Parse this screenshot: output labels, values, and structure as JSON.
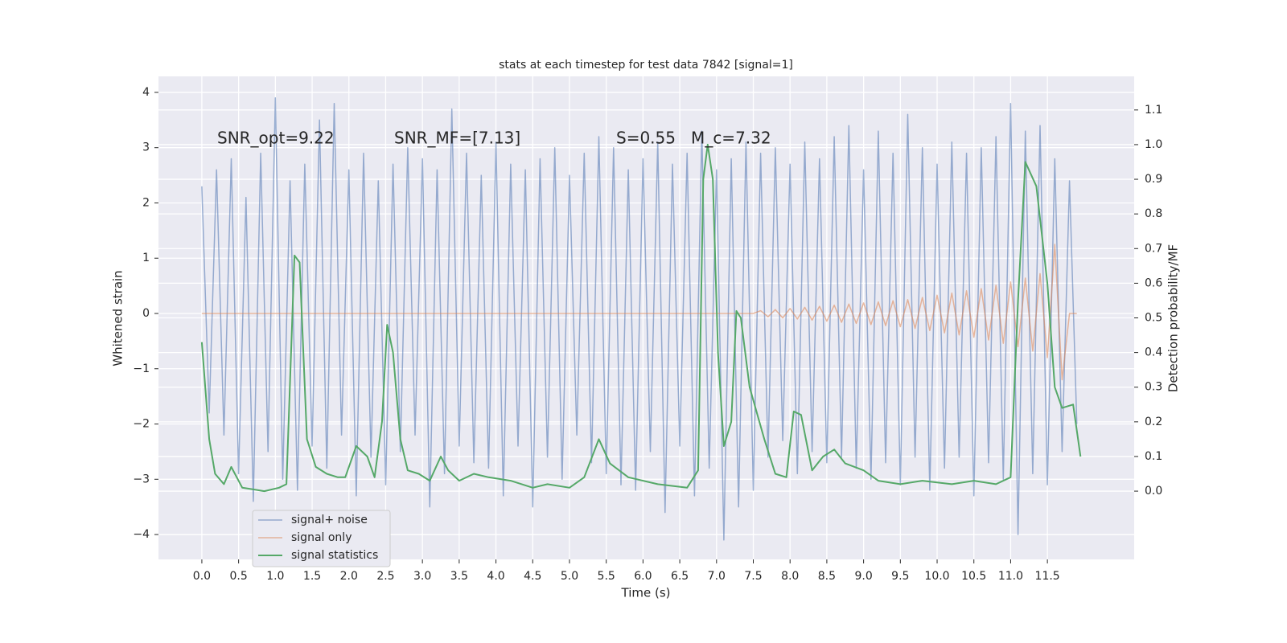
{
  "chart_data": {
    "type": "line",
    "title": "stats at each timestep for test data 7842 [signal=1]",
    "xlabel": "Time (s)",
    "ylabel": "Whitened strain",
    "y2label": "Detection probability/MF",
    "annotations": [
      "SNR_opt=9.22",
      "SNR_MF=[7.13]",
      "S=0.55   M_c=7.32"
    ],
    "grid": true,
    "legend": "lower left",
    "xlim": [
      -0.59,
      12.68
    ],
    "ylim": [
      -4.45,
      4.29
    ],
    "y2lim": [
      -0.197,
      1.197
    ],
    "xticks": [
      {
        "value": 0,
        "label": "0.0"
      },
      {
        "value": 0.5,
        "label": "0.5"
      },
      {
        "value": 1,
        "label": "1.0"
      },
      {
        "value": 1.5,
        "label": "1.5"
      },
      {
        "value": 2,
        "label": "2.0"
      },
      {
        "value": 2.5,
        "label": "2.5"
      },
      {
        "value": 3,
        "label": "3.0"
      },
      {
        "value": 3.5,
        "label": "3.5"
      },
      {
        "value": 4,
        "label": "4.0"
      },
      {
        "value": 4.5,
        "label": "4.5"
      },
      {
        "value": 5,
        "label": "5.0"
      },
      {
        "value": 5.5,
        "label": "5.5"
      },
      {
        "value": 6,
        "label": "6.0"
      },
      {
        "value": 6.5,
        "label": "6.5"
      },
      {
        "value": 7,
        "label": "7.0"
      },
      {
        "value": 7.5,
        "label": "7.5"
      },
      {
        "value": 8,
        "label": "8.0"
      },
      {
        "value": 8.5,
        "label": "8.5"
      },
      {
        "value": 9,
        "label": "9.0"
      },
      {
        "value": 9.5,
        "label": "9.5"
      },
      {
        "value": 10,
        "label": "10.0"
      },
      {
        "value": 10.5,
        "label": "10.5"
      },
      {
        "value": 11,
        "label": "11.0"
      },
      {
        "value": 11.5,
        "label": "11.5"
      }
    ],
    "yticks": [
      {
        "value": -4,
        "label": "−4"
      },
      {
        "value": -3,
        "label": "−3"
      },
      {
        "value": -2,
        "label": "−2"
      },
      {
        "value": -1,
        "label": "−1"
      },
      0,
      1,
      2,
      3,
      4
    ],
    "y2ticks": [
      {
        "value": 0,
        "label": "0.0"
      },
      {
        "value": 0.1,
        "label": "0.1"
      },
      {
        "value": 0.2,
        "label": "0.2"
      },
      {
        "value": 0.3,
        "label": "0.3"
      },
      {
        "value": 0.4,
        "label": "0.4"
      },
      {
        "value": 0.5,
        "label": "0.5"
      },
      {
        "value": 0.6,
        "label": "0.6"
      },
      {
        "value": 0.7,
        "label": "0.7"
      },
      {
        "value": 0.8,
        "label": "0.8"
      },
      {
        "value": 0.9,
        "label": "0.9"
      },
      {
        "value": 1,
        "label": "1.0"
      },
      {
        "value": 1.1,
        "label": "1.1"
      }
    ],
    "x": [
      0.0,
      0.1,
      0.2,
      0.3,
      0.4,
      0.5,
      0.6,
      0.7,
      0.8,
      0.9,
      1.0,
      1.1,
      1.2,
      1.3,
      1.4,
      1.5,
      1.6,
      1.7,
      1.8,
      1.9,
      2.0,
      2.1,
      2.2,
      2.3,
      2.4,
      2.5,
      2.6,
      2.7,
      2.8,
      2.9,
      3.0,
      3.1,
      3.2,
      3.3,
      3.4,
      3.5,
      3.6,
      3.7,
      3.8,
      3.9,
      4.0,
      4.1,
      4.2,
      4.3,
      4.4,
      4.5,
      4.6,
      4.7,
      4.8,
      4.9,
      5.0,
      5.1,
      5.2,
      5.3,
      5.4,
      5.5,
      5.6,
      5.7,
      5.8,
      5.9,
      6.0,
      6.1,
      6.2,
      6.3,
      6.4,
      6.5,
      6.6,
      6.7,
      6.8,
      6.9,
      7.0,
      7.1,
      7.2,
      7.3,
      7.4,
      7.5,
      7.6,
      7.7,
      7.8,
      7.9,
      8.0,
      8.1,
      8.2,
      8.3,
      8.4,
      8.5,
      8.6,
      8.7,
      8.8,
      8.9,
      9.0,
      9.1,
      9.2,
      9.3,
      9.4,
      9.5,
      9.6,
      9.7,
      9.8,
      9.9,
      10.0,
      10.1,
      10.2,
      10.3,
      10.4,
      10.5,
      10.6,
      10.7,
      10.8,
      10.9,
      11.0,
      11.1,
      11.2,
      11.3,
      11.4,
      11.5,
      11.6,
      11.7,
      11.8,
      11.9
    ],
    "series": [
      {
        "name": "signal+ noise",
        "color": "#4c72b0",
        "values": [
          2.3,
          -1.8,
          2.6,
          -2.2,
          2.8,
          -2.9,
          2.1,
          -3.4,
          2.9,
          -2.5,
          3.9,
          -3.0,
          2.4,
          -3.2,
          2.7,
          -2.4,
          3.5,
          -2.8,
          3.8,
          -2.2,
          2.6,
          -3.3,
          2.9,
          -2.6,
          2.4,
          -3.1,
          2.7,
          -2.5,
          3.0,
          -2.2,
          2.8,
          -3.5,
          2.6,
          -2.9,
          3.7,
          -2.4,
          2.9,
          -2.7,
          2.5,
          -2.8,
          3.1,
          -3.3,
          2.7,
          -2.4,
          2.6,
          -3.5,
          2.8,
          -2.6,
          3.0,
          -3.0,
          2.5,
          -2.2,
          2.9,
          -2.7,
          3.2,
          -2.9,
          3.0,
          -3.1,
          2.6,
          -3.2,
          2.8,
          -2.5,
          3.1,
          -3.6,
          2.7,
          -2.4,
          2.9,
          -3.3,
          3.3,
          -2.8,
          2.6,
          -4.1,
          2.8,
          -3.5,
          3.1,
          -3.2,
          2.9,
          -2.6,
          3.0,
          -2.3,
          2.7,
          -2.9,
          3.1,
          -2.5,
          2.8,
          -2.7,
          3.2,
          -2.6,
          3.4,
          -2.8,
          2.6,
          -3.0,
          3.3,
          -2.7,
          2.9,
          -3.1,
          3.6,
          -2.6,
          3.0,
          -3.2,
          2.7,
          -2.8,
          3.1,
          -2.6,
          2.9,
          -3.3,
          3.0,
          -2.7,
          3.2,
          -3.0,
          3.8,
          -4.0,
          3.3,
          -2.9,
          3.4,
          -3.1,
          2.8,
          -2.5,
          2.4,
          -2.0
        ]
      },
      {
        "name": "signal only",
        "color": "#dd8452",
        "values": [
          0,
          0,
          0,
          0,
          0,
          0,
          0,
          0,
          0,
          0,
          0,
          0,
          0,
          0,
          0,
          0,
          0,
          0,
          0,
          0,
          0,
          0,
          0,
          0,
          0,
          0,
          0,
          0,
          0,
          0,
          0,
          0,
          0,
          0,
          0,
          0,
          0,
          0,
          0,
          0,
          0,
          0,
          0,
          0,
          0,
          0,
          0,
          0,
          0,
          0,
          0,
          0,
          0,
          0,
          0,
          0,
          0,
          0,
          0,
          0,
          0,
          0,
          0,
          0,
          0,
          0,
          0,
          0,
          0,
          0,
          0,
          0,
          0,
          0,
          0,
          0,
          0.05,
          -0.06,
          0.07,
          -0.08,
          0.09,
          -0.1,
          0.11,
          -0.12,
          0.13,
          -0.14,
          0.15,
          -0.16,
          0.17,
          -0.18,
          0.19,
          -0.2,
          0.21,
          -0.22,
          0.23,
          -0.24,
          0.25,
          -0.27,
          0.29,
          -0.31,
          0.33,
          -0.35,
          0.37,
          -0.39,
          0.41,
          -0.43,
          0.45,
          -0.48,
          0.51,
          -0.54,
          0.57,
          -0.6,
          0.64,
          -0.68,
          0.72,
          -0.8,
          1.25,
          -1.2,
          0,
          0
        ]
      },
      {
        "name": "signal statistics",
        "color": "#55a868",
        "axis": "y2",
        "x": [
          0,
          0.1,
          0.18,
          0.3,
          0.4,
          0.55,
          0.7,
          0.85,
          1.05,
          1.15,
          1.26,
          1.33,
          1.43,
          1.55,
          1.7,
          1.85,
          1.95,
          2.1,
          2.25,
          2.35,
          2.45,
          2.52,
          2.6,
          2.7,
          2.8,
          2.95,
          3.1,
          3.25,
          3.35,
          3.5,
          3.7,
          3.9,
          4.2,
          4.5,
          4.7,
          5.0,
          5.2,
          5.4,
          5.55,
          5.8,
          6.2,
          6.6,
          6.75,
          6.82,
          6.88,
          6.95,
          7.02,
          7.1,
          7.2,
          7.27,
          7.33,
          7.45,
          7.65,
          7.8,
          7.95,
          8.05,
          8.15,
          8.3,
          8.45,
          8.6,
          8.75,
          9.0,
          9.2,
          9.5,
          9.8,
          10.2,
          10.5,
          10.8,
          11.0,
          11.1,
          11.2,
          11.35,
          11.5,
          11.6,
          11.7,
          11.85,
          11.95
        ],
        "values": [
          0.43,
          0.15,
          0.05,
          0.02,
          0.07,
          0.01,
          0.005,
          0.0,
          0.01,
          0.02,
          0.68,
          0.66,
          0.15,
          0.07,
          0.05,
          0.04,
          0.04,
          0.13,
          0.1,
          0.04,
          0.2,
          0.48,
          0.4,
          0.15,
          0.06,
          0.05,
          0.03,
          0.1,
          0.06,
          0.03,
          0.05,
          0.04,
          0.03,
          0.01,
          0.02,
          0.01,
          0.04,
          0.15,
          0.08,
          0.04,
          0.02,
          0.01,
          0.06,
          0.9,
          1.0,
          0.9,
          0.4,
          0.13,
          0.2,
          0.52,
          0.5,
          0.3,
          0.15,
          0.05,
          0.04,
          0.23,
          0.22,
          0.06,
          0.1,
          0.12,
          0.08,
          0.06,
          0.03,
          0.02,
          0.03,
          0.02,
          0.03,
          0.02,
          0.04,
          0.55,
          0.95,
          0.88,
          0.6,
          0.3,
          0.24,
          0.25,
          0.1
        ]
      }
    ]
  }
}
